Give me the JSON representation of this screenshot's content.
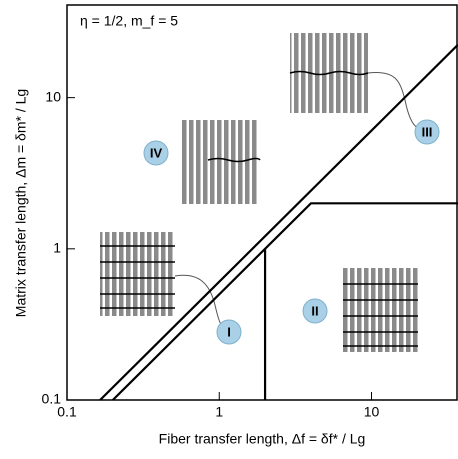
{
  "chart_data": {
    "type": "line",
    "annotation": "η = 1/2, m_f = 5",
    "xlabel": "Fiber transfer length, Δf = δf* / Lg",
    "ylabel": "Matrix transfer length, Δm = δm* / Lg",
    "log_x": true,
    "log_y": true,
    "xlim": [
      0.1,
      37
    ],
    "ylim": [
      0.1,
      41
    ],
    "xticks": [
      0.1,
      1,
      10
    ],
    "yticks": [
      0.1,
      1,
      10
    ],
    "series": [
      {
        "color": "#000000",
        "x": [
          0.165,
          37
        ],
        "values": [
          0.1,
          22.4
        ]
      },
      {
        "color": "#000000",
        "x": [
          0.2,
          4,
          37
        ],
        "values": [
          0.1,
          2,
          2
        ]
      },
      {
        "color": "#000000",
        "x": [
          2,
          2
        ],
        "values": [
          0.1,
          1
        ]
      }
    ],
    "regions": [
      "I",
      "II",
      "III",
      "IV"
    ]
  }
}
